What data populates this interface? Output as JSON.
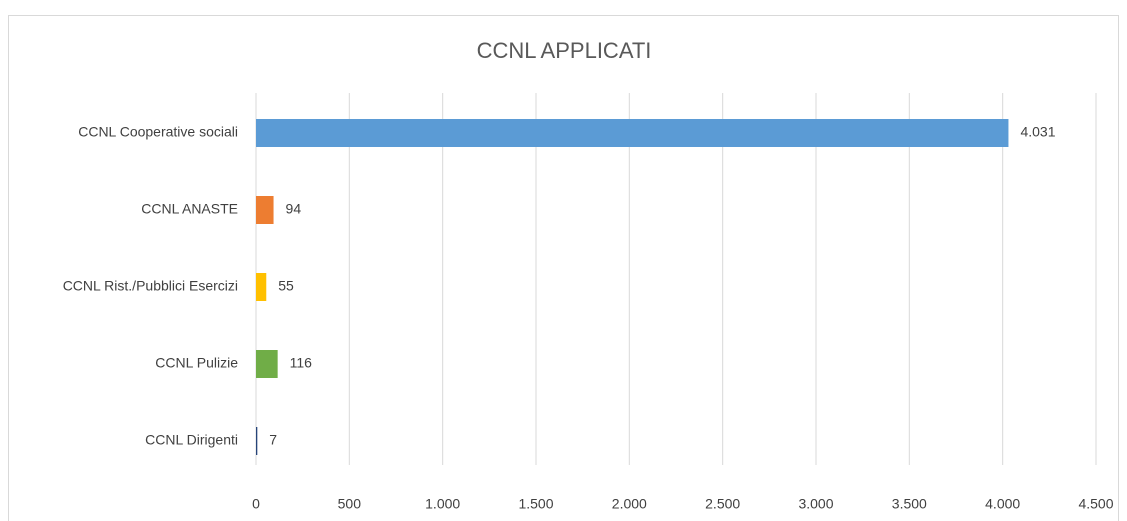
{
  "chart_data": {
    "type": "barh",
    "title": "CCNL APPLICATI",
    "categories": [
      "CCNL Cooperative sociali",
      "CCNL ANASTE",
      "CCNL Rist./Pubblici Esercizi",
      "CCNL Pulizie",
      "CCNL Dirigenti"
    ],
    "values": [
      4031,
      94,
      55,
      116,
      7
    ],
    "value_labels": [
      "4.031",
      "94",
      "55",
      "116",
      "7"
    ],
    "colors": [
      "#5b9bd5",
      "#ed7d31",
      "#ffc000",
      "#70ad47",
      "#264478"
    ],
    "xlim": [
      0,
      4500
    ],
    "xticks": [
      0,
      500,
      {
        "value": 1000,
        "label": "1.000"
      },
      {
        "value": 1500,
        "label": "1.500"
      },
      {
        "value": 2000,
        "label": "2.000"
      },
      {
        "value": 2500,
        "label": "2.500"
      },
      {
        "value": 3000,
        "label": "3.000"
      },
      {
        "value": 3500,
        "label": "3.500"
      },
      {
        "value": 4000,
        "label": "4.000"
      },
      {
        "value": 4500,
        "label": "4.500"
      }
    ],
    "grid": true
  }
}
